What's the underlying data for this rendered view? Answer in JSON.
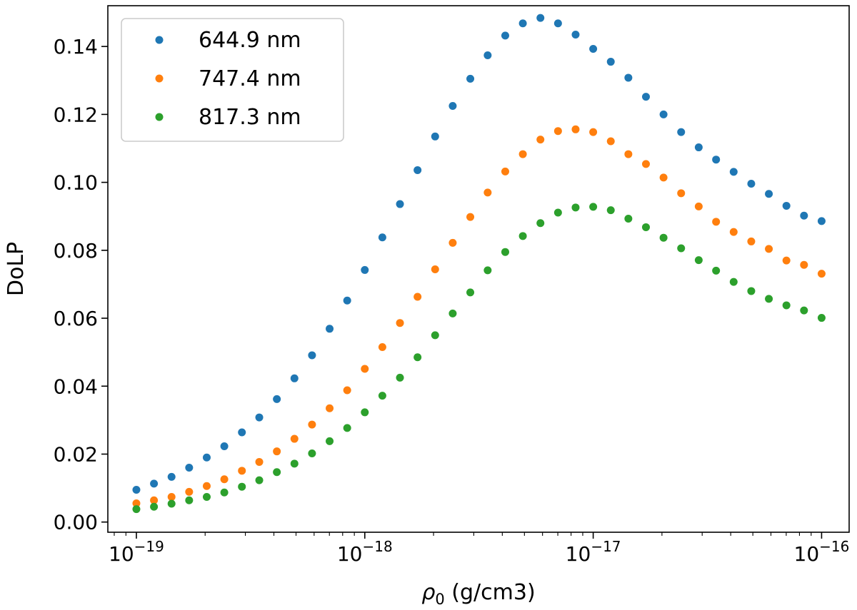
{
  "chart_data": {
    "type": "scatter",
    "title": "",
    "xlabel": "ρ0 (g/cm3)",
    "xlabel_parts": {
      "symbol": "ρ",
      "subscript": "0",
      "rest": " (g/cm3)"
    },
    "ylabel": "DoLP",
    "xscale": "log",
    "xlim": [
      7.5e-20,
      1.32e-16
    ],
    "ylim": [
      -0.003,
      0.152
    ],
    "grid": false,
    "legend_position": "top-left",
    "x_ticks": [
      {
        "base": "10",
        "exp": "−19",
        "value": 1e-19
      },
      {
        "base": "10",
        "exp": "−18",
        "value": 1e-18
      },
      {
        "base": "10",
        "exp": "−17",
        "value": 1e-17
      },
      {
        "base": "10",
        "exp": "−16",
        "value": 1e-16
      }
    ],
    "y_ticks": [
      {
        "label": "0.00",
        "value": 0.0
      },
      {
        "label": "0.02",
        "value": 0.02
      },
      {
        "label": "0.04",
        "value": 0.04
      },
      {
        "label": "0.06",
        "value": 0.06
      },
      {
        "label": "0.08",
        "value": 0.08
      },
      {
        "label": "0.10",
        "value": 0.1
      },
      {
        "label": "0.12",
        "value": 0.12
      },
      {
        "label": "0.14",
        "value": 0.14
      }
    ],
    "x_log10": [
      -19.0,
      -18.923,
      -18.846,
      -18.769,
      -18.692,
      -18.615,
      -18.538,
      -18.462,
      -18.385,
      -18.308,
      -18.231,
      -18.154,
      -18.077,
      -18.0,
      -17.923,
      -17.846,
      -17.769,
      -17.692,
      -17.615,
      -17.538,
      -17.462,
      -17.385,
      -17.308,
      -17.231,
      -17.154,
      -17.077,
      -17.0,
      -16.923,
      -16.846,
      -16.769,
      -16.692,
      -16.615,
      -16.538,
      -16.462,
      -16.385,
      -16.308,
      -16.231,
      -16.154,
      -16.077,
      -16.0
    ],
    "series": [
      {
        "name": "644.9 nm",
        "color": "#1f77b4",
        "values": [
          0.0095,
          0.0113,
          0.0133,
          0.016,
          0.019,
          0.0223,
          0.0264,
          0.0308,
          0.0362,
          0.0423,
          0.0491,
          0.0569,
          0.0652,
          0.0742,
          0.0838,
          0.0936,
          0.1036,
          0.1135,
          0.1225,
          0.1305,
          0.1374,
          0.1432,
          0.1468,
          0.1484,
          0.1468,
          0.1435,
          0.1393,
          0.1355,
          0.1308,
          0.1252,
          0.12,
          0.1148,
          0.1103,
          0.1067,
          0.1031,
          0.0996,
          0.0966,
          0.0931,
          0.0902,
          0.0886
        ]
      },
      {
        "name": "747.4 nm",
        "color": "#ff7f0e",
        "values": [
          0.0055,
          0.0064,
          0.0074,
          0.0089,
          0.0106,
          0.0126,
          0.0151,
          0.0177,
          0.0208,
          0.0245,
          0.0287,
          0.0335,
          0.0388,
          0.0451,
          0.0515,
          0.0586,
          0.0663,
          0.0744,
          0.0822,
          0.0898,
          0.097,
          0.1032,
          0.1083,
          0.1126,
          0.1151,
          0.1156,
          0.1148,
          0.1121,
          0.1083,
          0.1054,
          0.1014,
          0.0968,
          0.0929,
          0.0884,
          0.0854,
          0.0826,
          0.0804,
          0.077,
          0.0757,
          0.0731
        ]
      },
      {
        "name": "817.3 nm",
        "color": "#2ca02c",
        "values": [
          0.0038,
          0.0045,
          0.0054,
          0.0064,
          0.0074,
          0.0087,
          0.0104,
          0.0123,
          0.0147,
          0.0172,
          0.0202,
          0.0238,
          0.0277,
          0.0323,
          0.0372,
          0.0425,
          0.0485,
          0.055,
          0.0614,
          0.0676,
          0.0741,
          0.0795,
          0.0842,
          0.088,
          0.0911,
          0.0926,
          0.0928,
          0.0918,
          0.0893,
          0.0868,
          0.0837,
          0.0806,
          0.0771,
          0.074,
          0.0707,
          0.068,
          0.0657,
          0.0638,
          0.0623,
          0.0601
        ]
      }
    ]
  }
}
